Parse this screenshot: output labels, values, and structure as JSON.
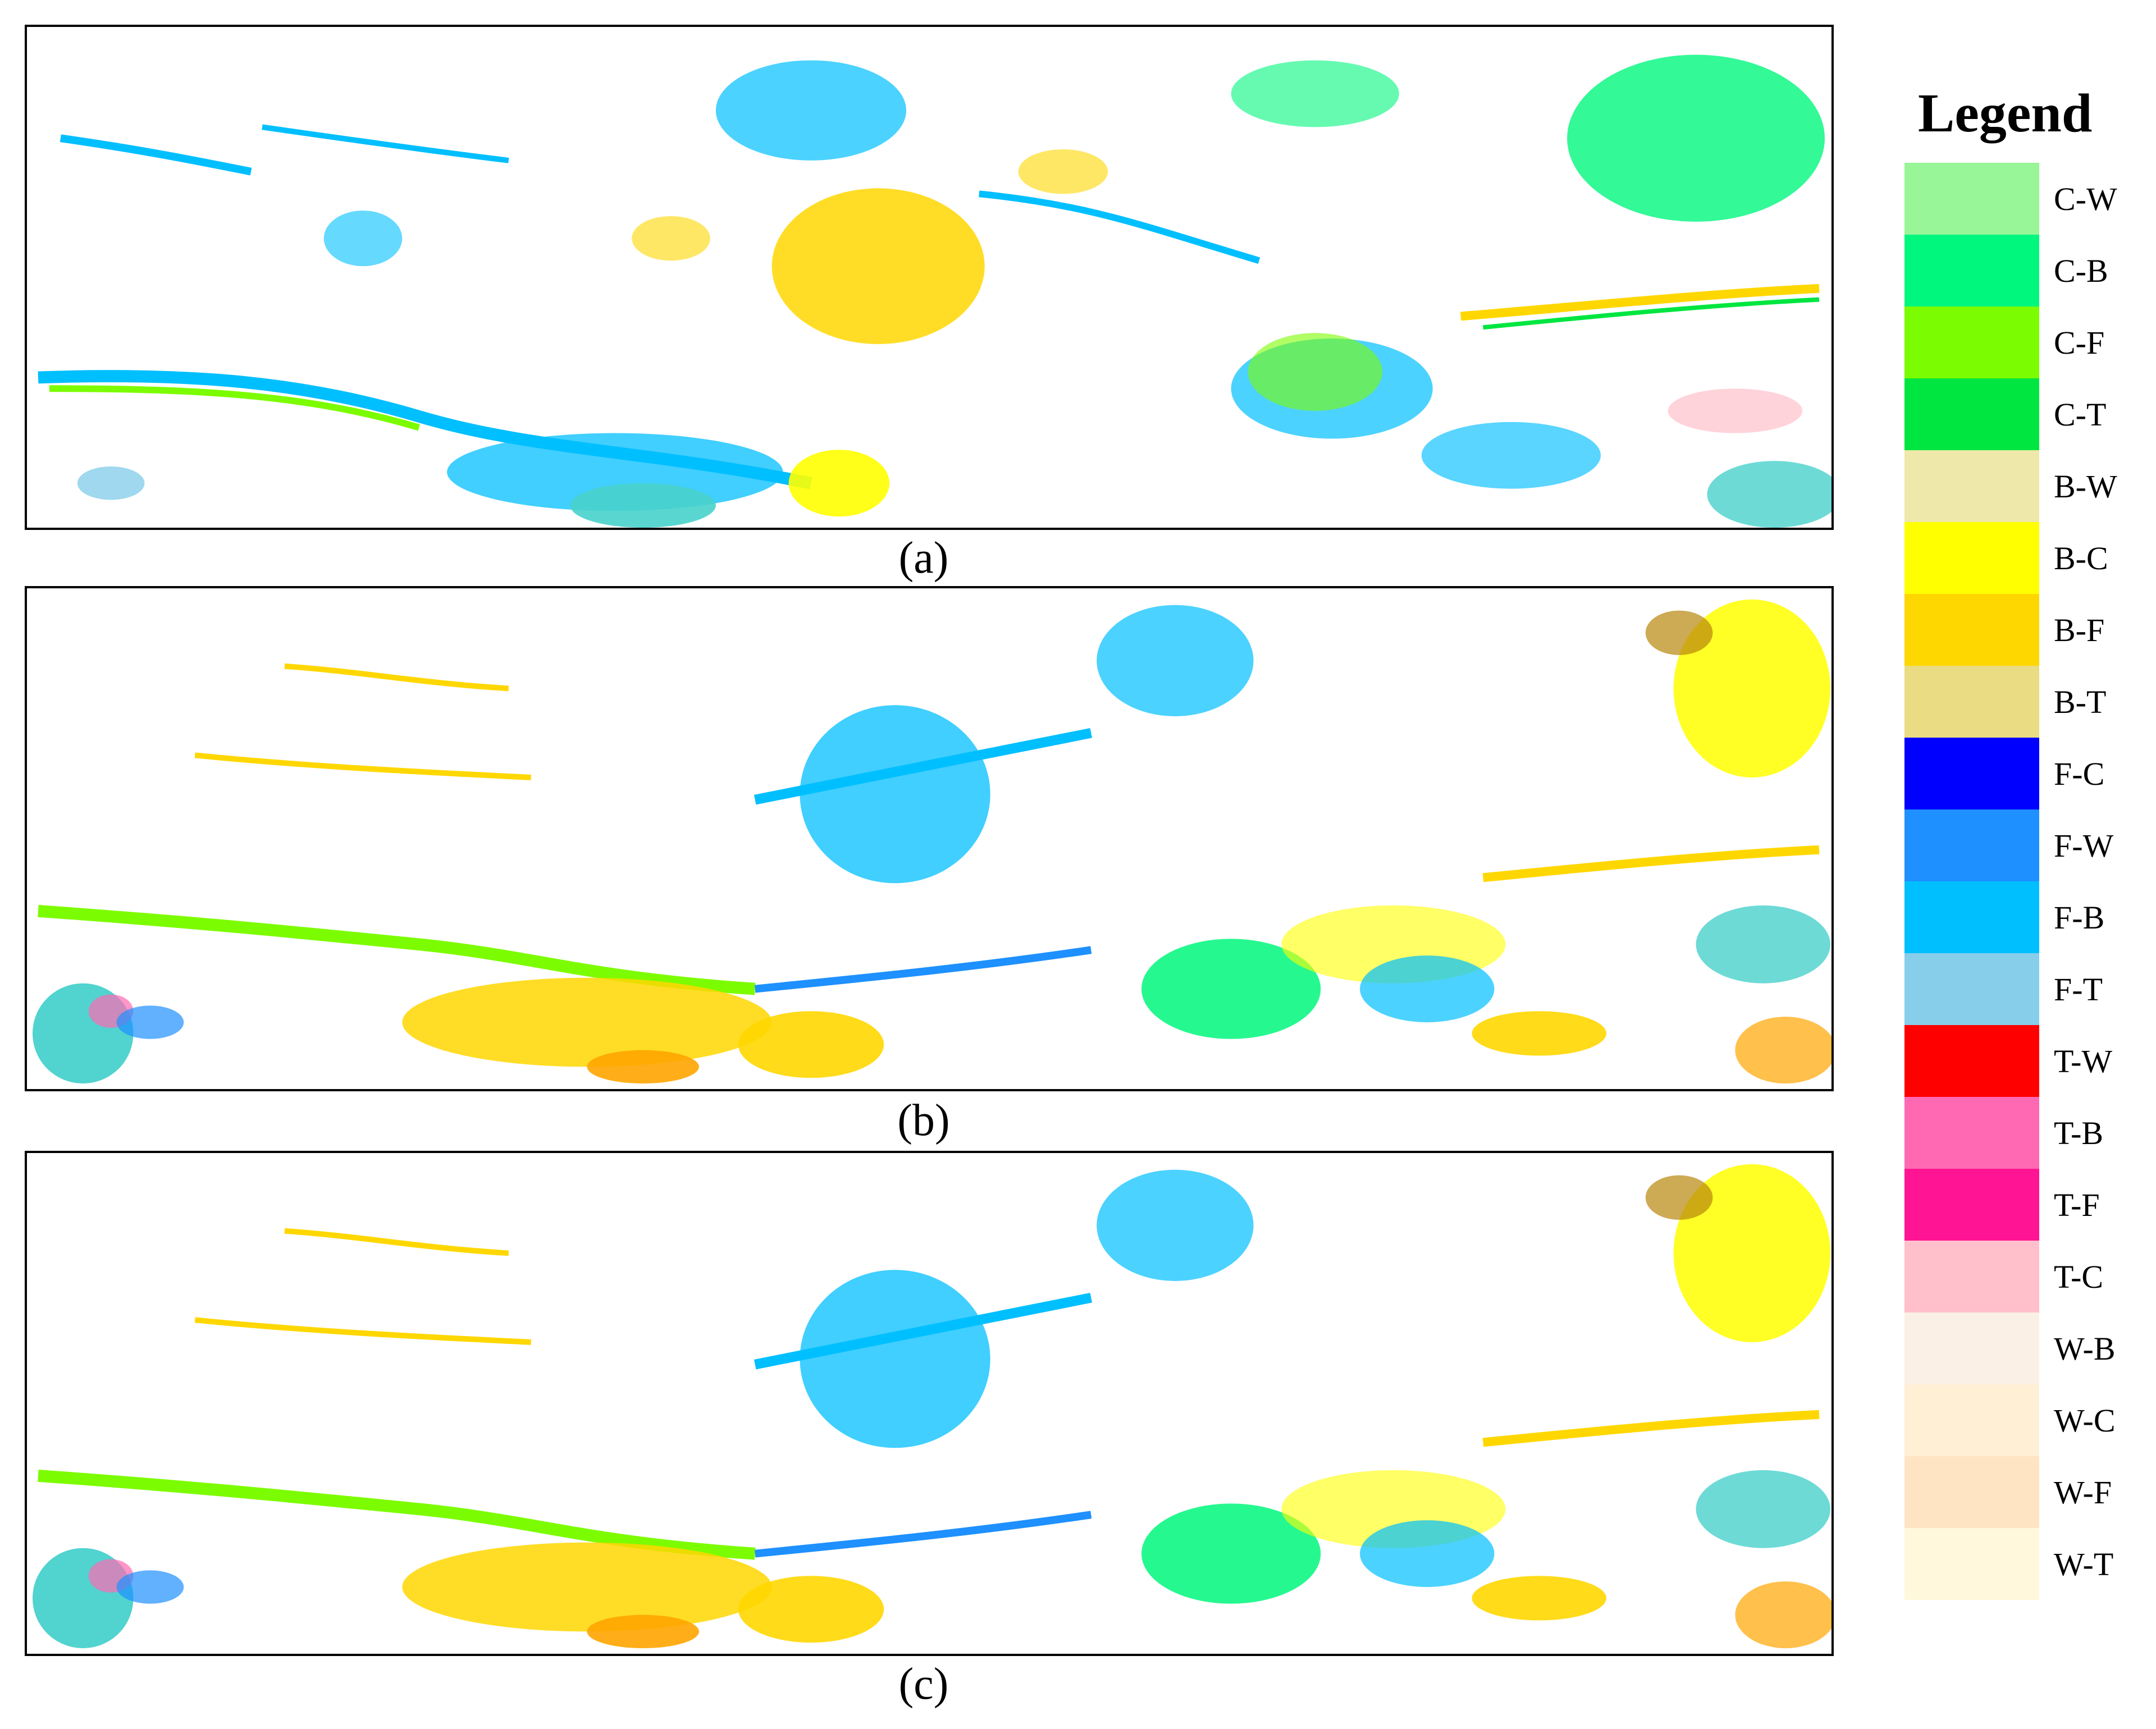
{
  "panels": [
    {
      "id": "a",
      "caption": "(a)"
    },
    {
      "id": "b",
      "caption": "(b)"
    },
    {
      "id": "c",
      "caption": "(c)"
    }
  ],
  "legend": {
    "title": "Legend",
    "items": [
      {
        "label": "C-W",
        "color": "#98f598"
      },
      {
        "label": "C-B",
        "color": "#00f77d"
      },
      {
        "label": "C-F",
        "color": "#7cfc00"
      },
      {
        "label": "C-T",
        "color": "#00e640"
      },
      {
        "label": "B-W",
        "color": "#eee8aa"
      },
      {
        "label": "B-C",
        "color": "#ffff00"
      },
      {
        "label": "B-F",
        "color": "#ffd700"
      },
      {
        "label": "B-T",
        "color": "#e9dc82"
      },
      {
        "label": "F-C",
        "color": "#0000ff"
      },
      {
        "label": "F-W",
        "color": "#1e90ff"
      },
      {
        "label": "F-B",
        "color": "#00bfff"
      },
      {
        "label": "F-T",
        "color": "#87ceeb"
      },
      {
        "label": "T-W",
        "color": "#ff0000"
      },
      {
        "label": "T-B",
        "color": "#ff69b4"
      },
      {
        "label": "T-F",
        "color": "#ff1493"
      },
      {
        "label": "T-C",
        "color": "#ffc0cb"
      },
      {
        "label": "W-B",
        "color": "#faf0e6"
      },
      {
        "label": "W-C",
        "color": "#ffefd5"
      },
      {
        "label": "W-F",
        "color": "#ffe4c4"
      },
      {
        "label": "W-T",
        "color": "#fff8dc"
      }
    ]
  }
}
